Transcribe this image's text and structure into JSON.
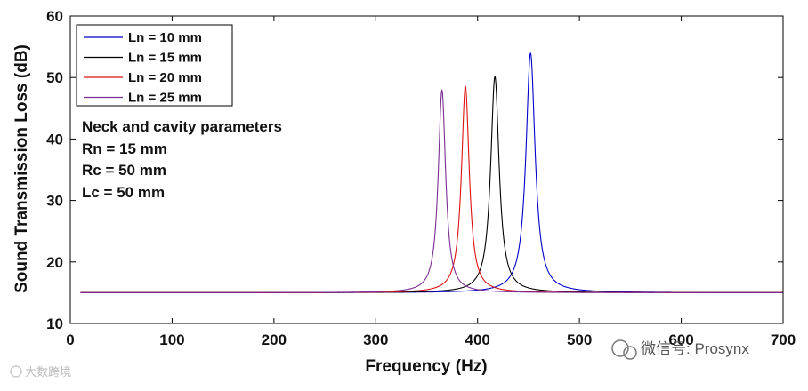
{
  "chart_data": {
    "type": "line",
    "title": "",
    "xlabel": "Frequency (Hz)",
    "ylabel": "Sound Transmission Loss (dB)",
    "xlim": [
      0,
      700
    ],
    "ylim": [
      10,
      60
    ],
    "xticks": [
      0,
      100,
      200,
      300,
      400,
      500,
      600,
      700
    ],
    "yticks": [
      10,
      20,
      30,
      40,
      50,
      60
    ],
    "grid": false,
    "legend_position": "top-left",
    "baseline": 15.0,
    "freq_start": 10,
    "freq_end": 700,
    "series": [
      {
        "name": "Ln = 10 mm",
        "color": "#0000cc",
        "peak_freq": 452,
        "peak_tl": 54.0,
        "base_tl": 15.0
      },
      {
        "name": "Ln = 15 mm",
        "color": "#000000",
        "peak_freq": 417,
        "peak_tl": 50.2,
        "base_tl": 15.0
      },
      {
        "name": "Ln = 20 mm",
        "color": "#dd1111",
        "peak_freq": 388,
        "peak_tl": 48.6,
        "base_tl": 15.0
      },
      {
        "name": "Ln = 25 mm",
        "color": "#7b2d91",
        "peak_freq": 365,
        "peak_tl": 48.0,
        "base_tl": 15.0
      }
    ],
    "annotation": {
      "title": "Neck and cavity parameters",
      "lines": [
        "Rn = 15 mm",
        "Rc = 50 mm",
        "Lc = 50 mm"
      ]
    }
  },
  "watermark": {
    "right_text": "微信号: Prosynx",
    "left_text": "大数跨境"
  }
}
